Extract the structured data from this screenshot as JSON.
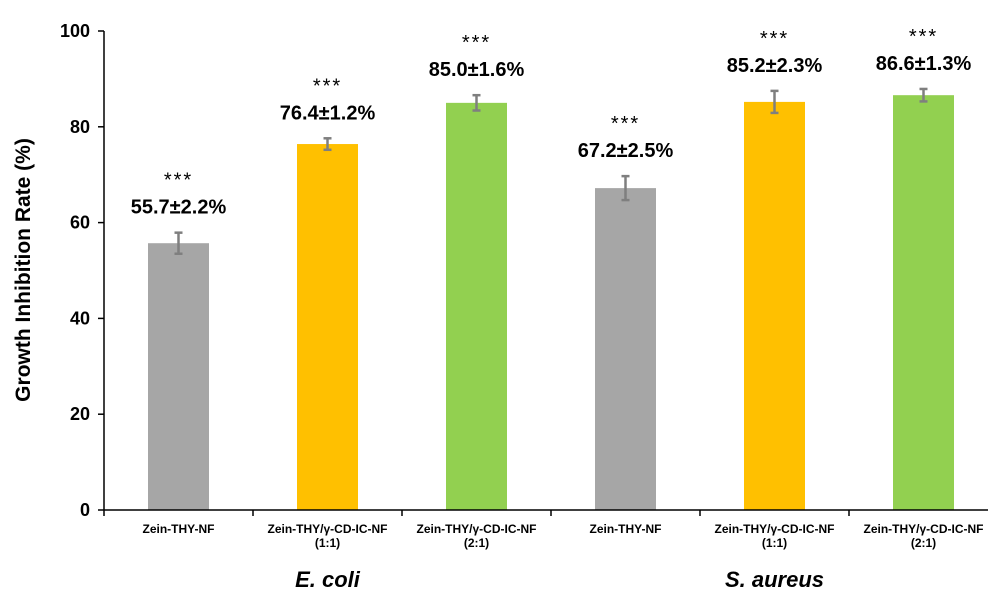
{
  "chart_data": {
    "type": "bar",
    "title": "",
    "xlabel": "",
    "ylabel": "Growth Inhibition Rate (%)",
    "ylim": [
      0,
      100
    ],
    "yticks": [
      0,
      20,
      40,
      60,
      80,
      100
    ],
    "grid": false,
    "groups": [
      {
        "name": "E. coli",
        "bars": [
          {
            "label": [
              "Zein-THY-NF"
            ],
            "value": 55.7,
            "error": 2.2,
            "value_label": "55.7±2.2%",
            "significance": "***",
            "color": "#a6a6a6"
          },
          {
            "label": [
              "Zein-THY/γ-CD-IC-NF",
              "(1:1)"
            ],
            "value": 76.4,
            "error": 1.2,
            "value_label": "76.4±1.2%",
            "significance": "***",
            "color": "#ffc000"
          },
          {
            "label": [
              "Zein-THY/γ-CD-IC-NF",
              "(2:1)"
            ],
            "value": 85.0,
            "error": 1.6,
            "value_label": "85.0±1.6%",
            "significance": "***",
            "color": "#92d050"
          }
        ]
      },
      {
        "name": "S. aureus",
        "bars": [
          {
            "label": [
              "Zein-THY-NF"
            ],
            "value": 67.2,
            "error": 2.5,
            "value_label": "67.2±2.5%",
            "significance": "***",
            "color": "#a6a6a6"
          },
          {
            "label": [
              "Zein-THY/γ-CD-IC-NF",
              "(1:1)"
            ],
            "value": 85.2,
            "error": 2.3,
            "value_label": "85.2±2.3%",
            "significance": "***",
            "color": "#ffc000"
          },
          {
            "label": [
              "Zein-THY/γ-CD-IC-NF",
              "(2:1)"
            ],
            "value": 86.6,
            "error": 1.3,
            "value_label": "86.6±1.3%",
            "significance": "***",
            "color": "#92d050"
          }
        ]
      }
    ],
    "error_bar_color": "#7f7f7f",
    "axis_color": "#000000"
  }
}
